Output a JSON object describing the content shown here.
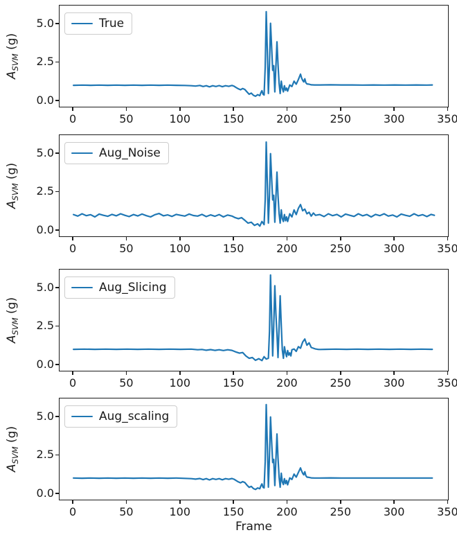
{
  "figure": {
    "background": "#ffffff"
  },
  "style": {
    "line_color": "#1f77b4",
    "spine_color": "#1a1a1a",
    "text_color": "#1a1a1a"
  },
  "ylabel_parts": {
    "main": "A",
    "sub": "SVM",
    "unit": " (g)"
  },
  "xlabel": "Frame",
  "chart_data": [
    {
      "type": "line",
      "legend": "True",
      "ylabel": "A_SVM (g)",
      "xlabel": "",
      "xlim": [
        -13,
        351
      ],
      "ylim": [
        -0.45,
        6.2
      ],
      "xticks": [
        0,
        50,
        100,
        150,
        200,
        250,
        300,
        350
      ],
      "yticks": [
        0.0,
        2.5,
        5.0
      ],
      "xtick_labels": [
        "0",
        "50",
        "100",
        "150",
        "200",
        "250",
        "300",
        "350"
      ],
      "ytick_labels": [
        "0.0",
        "2.5",
        "5.0"
      ],
      "x": [
        0,
        8,
        16,
        24,
        32,
        40,
        48,
        56,
        64,
        72,
        80,
        88,
        96,
        104,
        110,
        114,
        118,
        121,
        124,
        127,
        130,
        133,
        136,
        139,
        142,
        145,
        148,
        150,
        152,
        154,
        156,
        158,
        160,
        162,
        164,
        166,
        168,
        170,
        172,
        174,
        175,
        176,
        177,
        178,
        179,
        180,
        181,
        182,
        183,
        184,
        185,
        186,
        187,
        188,
        189,
        190,
        191,
        192,
        193,
        194,
        195,
        196,
        197,
        198,
        199,
        200,
        202,
        204,
        206,
        208,
        210,
        212,
        213,
        214,
        215,
        216,
        217,
        218,
        220,
        222,
        225,
        230,
        240,
        250,
        260,
        270,
        280,
        290,
        300,
        310,
        320,
        330,
        335
      ],
      "y": [
        1.03,
        1.04,
        1.03,
        1.04,
        1.03,
        1.04,
        1.03,
        1.04,
        1.03,
        1.04,
        1.03,
        1.04,
        1.03,
        1.02,
        1.0,
        0.98,
        1.02,
        0.95,
        1.0,
        0.93,
        1.0,
        0.95,
        1.01,
        0.94,
        1.0,
        0.96,
        1.02,
        0.97,
        0.88,
        0.8,
        0.74,
        0.82,
        0.76,
        0.6,
        0.45,
        0.52,
        0.38,
        0.32,
        0.42,
        0.36,
        0.55,
        0.68,
        0.45,
        0.4,
        2.2,
        5.8,
        3.2,
        0.5,
        2.4,
        5.05,
        3.6,
        2.0,
        2.3,
        0.6,
        2.2,
        3.85,
        2.4,
        1.15,
        0.5,
        1.3,
        0.85,
        0.6,
        1.0,
        0.7,
        0.85,
        0.65,
        1.05,
        0.95,
        1.3,
        1.1,
        1.4,
        1.75,
        1.5,
        1.35,
        1.25,
        1.45,
        1.2,
        1.12,
        1.1,
        1.06,
        1.05,
        1.05,
        1.06,
        1.05,
        1.05,
        1.04,
        1.05,
        1.04,
        1.05,
        1.04,
        1.05,
        1.04,
        1.05
      ]
    },
    {
      "type": "line",
      "legend": "Aug_Noise",
      "ylabel": "A_SVM (g)",
      "xlabel": "",
      "xlim": [
        -13,
        351
      ],
      "ylim": [
        -0.45,
        6.2
      ],
      "xticks": [
        0,
        50,
        100,
        150,
        200,
        250,
        300,
        350
      ],
      "yticks": [
        0.0,
        2.5,
        5.0
      ],
      "xtick_labels": [
        "0",
        "50",
        "100",
        "150",
        "200",
        "250",
        "300",
        "350"
      ],
      "ytick_labels": [
        "0.0",
        "2.5",
        "5.0"
      ],
      "x": [
        0,
        4,
        8,
        12,
        16,
        20,
        24,
        28,
        32,
        36,
        40,
        44,
        48,
        52,
        56,
        60,
        64,
        68,
        72,
        76,
        80,
        84,
        88,
        92,
        96,
        100,
        104,
        108,
        112,
        116,
        120,
        124,
        128,
        132,
        136,
        140,
        144,
        148,
        151,
        154,
        157,
        160,
        163,
        166,
        169,
        172,
        174,
        176,
        178,
        179,
        180,
        181,
        182,
        183,
        184,
        185,
        186,
        187,
        188,
        189,
        190,
        191,
        192,
        193,
        194,
        195,
        196,
        197,
        198,
        199,
        200,
        202,
        204,
        206,
        208,
        210,
        212,
        214,
        216,
        218,
        220,
        222,
        224,
        226,
        230,
        234,
        238,
        242,
        246,
        250,
        254,
        258,
        262,
        266,
        270,
        274,
        278,
        282,
        286,
        290,
        294,
        298,
        302,
        306,
        310,
        314,
        318,
        322,
        326,
        330,
        334,
        337
      ],
      "y": [
        1.05,
        0.95,
        1.1,
        0.98,
        1.04,
        0.9,
        1.08,
        1.0,
        0.94,
        1.06,
        0.97,
        1.1,
        1.0,
        0.92,
        1.05,
        0.96,
        1.08,
        0.98,
        0.9,
        1.04,
        1.12,
        0.97,
        1.03,
        0.93,
        1.06,
        1.0,
        0.95,
        1.08,
        0.99,
        0.95,
        1.06,
        0.92,
        1.03,
        0.94,
        1.05,
        0.9,
        1.02,
        0.95,
        0.85,
        0.78,
        0.85,
        0.68,
        0.5,
        0.55,
        0.35,
        0.45,
        0.3,
        0.6,
        0.4,
        2.0,
        5.75,
        3.0,
        0.5,
        2.3,
        5.0,
        3.5,
        2.0,
        2.3,
        0.55,
        2.1,
        3.8,
        2.3,
        1.1,
        0.5,
        1.35,
        0.8,
        0.6,
        1.05,
        0.65,
        0.9,
        0.6,
        1.1,
        0.9,
        1.35,
        1.05,
        1.45,
        1.7,
        1.3,
        1.4,
        1.1,
        1.2,
        0.95,
        1.15,
        1.0,
        1.05,
        0.92,
        1.1,
        0.98,
        1.06,
        0.9,
        1.08,
        1.0,
        0.93,
        1.1,
        0.97,
        1.05,
        0.9,
        1.06,
        0.98,
        1.1,
        0.95,
        1.02,
        0.9,
        1.08,
        1.0,
        0.94,
        1.1,
        0.97,
        1.04,
        0.92,
        1.06,
        1.0
      ]
    },
    {
      "type": "line",
      "legend": "Aug_Slicing",
      "ylabel": "A_SVM (g)",
      "xlabel": "",
      "xlim": [
        -13,
        351
      ],
      "ylim": [
        -0.45,
        6.2
      ],
      "xticks": [
        0,
        50,
        100,
        150,
        200,
        250,
        300,
        350
      ],
      "yticks": [
        0.0,
        2.5,
        5.0
      ],
      "xtick_labels": [
        "0",
        "50",
        "100",
        "150",
        "200",
        "250",
        "300",
        "350"
      ],
      "ytick_labels": [
        "0.0",
        "2.5",
        "5.0"
      ],
      "x": [
        0,
        10,
        20,
        30,
        40,
        50,
        60,
        70,
        80,
        90,
        100,
        110,
        116,
        120,
        124,
        128,
        132,
        136,
        140,
        144,
        148,
        152,
        155,
        158,
        161,
        164,
        167,
        170,
        173,
        176,
        178,
        180,
        182,
        183,
        184,
        185,
        186,
        187,
        188,
        189,
        190,
        191,
        192,
        193,
        194,
        195,
        196,
        197,
        198,
        199,
        200,
        201,
        202,
        203,
        204,
        206,
        208,
        210,
        212,
        214,
        216,
        218,
        220,
        222,
        224,
        226,
        228,
        230,
        235,
        245,
        255,
        265,
        275,
        285,
        295,
        305,
        315,
        325,
        335
      ],
      "y": [
        1.03,
        1.04,
        1.03,
        1.04,
        1.03,
        1.04,
        1.03,
        1.04,
        1.03,
        1.04,
        1.03,
        1.04,
        1.0,
        1.02,
        0.97,
        1.01,
        0.96,
        1.0,
        0.95,
        1.0,
        0.96,
        0.85,
        0.78,
        0.82,
        0.6,
        0.45,
        0.5,
        0.32,
        0.42,
        0.3,
        0.55,
        0.4,
        0.45,
        2.2,
        5.85,
        3.3,
        0.6,
        2.5,
        5.15,
        3.4,
        2.0,
        0.5,
        2.5,
        4.5,
        2.6,
        1.0,
        0.45,
        1.2,
        0.8,
        0.55,
        0.95,
        0.65,
        0.8,
        0.6,
        1.0,
        1.05,
        0.9,
        1.2,
        1.1,
        1.5,
        1.7,
        1.3,
        1.45,
        1.15,
        1.1,
        1.05,
        1.03,
        1.02,
        1.03,
        1.04,
        1.03,
        1.04,
        1.03,
        1.04,
        1.03,
        1.04,
        1.03,
        1.04,
        1.03
      ]
    },
    {
      "type": "line",
      "legend": "Aug_scaling",
      "ylabel": "A_SVM (g)",
      "xlabel": "Frame",
      "xlim": [
        -13,
        351
      ],
      "ylim": [
        -0.45,
        6.2
      ],
      "xticks": [
        0,
        50,
        100,
        150,
        200,
        250,
        300,
        350
      ],
      "yticks": [
        0.0,
        2.5,
        5.0
      ],
      "xtick_labels": [
        "0",
        "50",
        "100",
        "150",
        "200",
        "250",
        "300",
        "350"
      ],
      "ytick_labels": [
        "0.0",
        "2.5",
        "5.0"
      ],
      "x": [
        0,
        8,
        16,
        24,
        32,
        40,
        48,
        56,
        64,
        72,
        80,
        88,
        96,
        104,
        110,
        114,
        118,
        121,
        124,
        127,
        130,
        133,
        136,
        139,
        142,
        145,
        148,
        150,
        152,
        154,
        156,
        158,
        160,
        162,
        164,
        166,
        168,
        170,
        172,
        174,
        175,
        176,
        177,
        178,
        179,
        180,
        181,
        182,
        183,
        184,
        185,
        186,
        187,
        188,
        189,
        190,
        191,
        192,
        193,
        194,
        195,
        196,
        197,
        198,
        199,
        200,
        202,
        204,
        206,
        208,
        210,
        212,
        213,
        214,
        215,
        216,
        217,
        218,
        220,
        222,
        225,
        230,
        240,
        250,
        260,
        270,
        280,
        290,
        300,
        310,
        320,
        330,
        335
      ],
      "y": [
        1.04,
        1.03,
        1.04,
        1.03,
        1.04,
        1.03,
        1.04,
        1.03,
        1.04,
        1.03,
        1.04,
        1.03,
        1.04,
        1.02,
        1.0,
        0.97,
        1.01,
        0.94,
        1.0,
        0.92,
        1.0,
        0.95,
        1.0,
        0.93,
        1.0,
        0.96,
        1.01,
        0.96,
        0.87,
        0.79,
        0.73,
        0.81,
        0.75,
        0.58,
        0.44,
        0.5,
        0.36,
        0.3,
        0.4,
        0.35,
        0.54,
        0.66,
        0.44,
        0.4,
        2.1,
        5.8,
        3.1,
        0.45,
        2.5,
        5.0,
        3.5,
        2.05,
        2.25,
        0.55,
        2.15,
        3.9,
        2.35,
        1.1,
        0.45,
        1.35,
        0.8,
        0.62,
        1.0,
        0.68,
        0.88,
        0.6,
        1.05,
        0.95,
        1.3,
        1.1,
        1.4,
        1.7,
        1.5,
        1.35,
        1.25,
        1.45,
        1.2,
        1.1,
        1.08,
        1.05,
        1.04,
        1.04,
        1.05,
        1.04,
        1.04,
        1.04,
        1.04,
        1.04,
        1.04,
        1.04,
        1.04,
        1.04,
        1.04
      ]
    }
  ]
}
